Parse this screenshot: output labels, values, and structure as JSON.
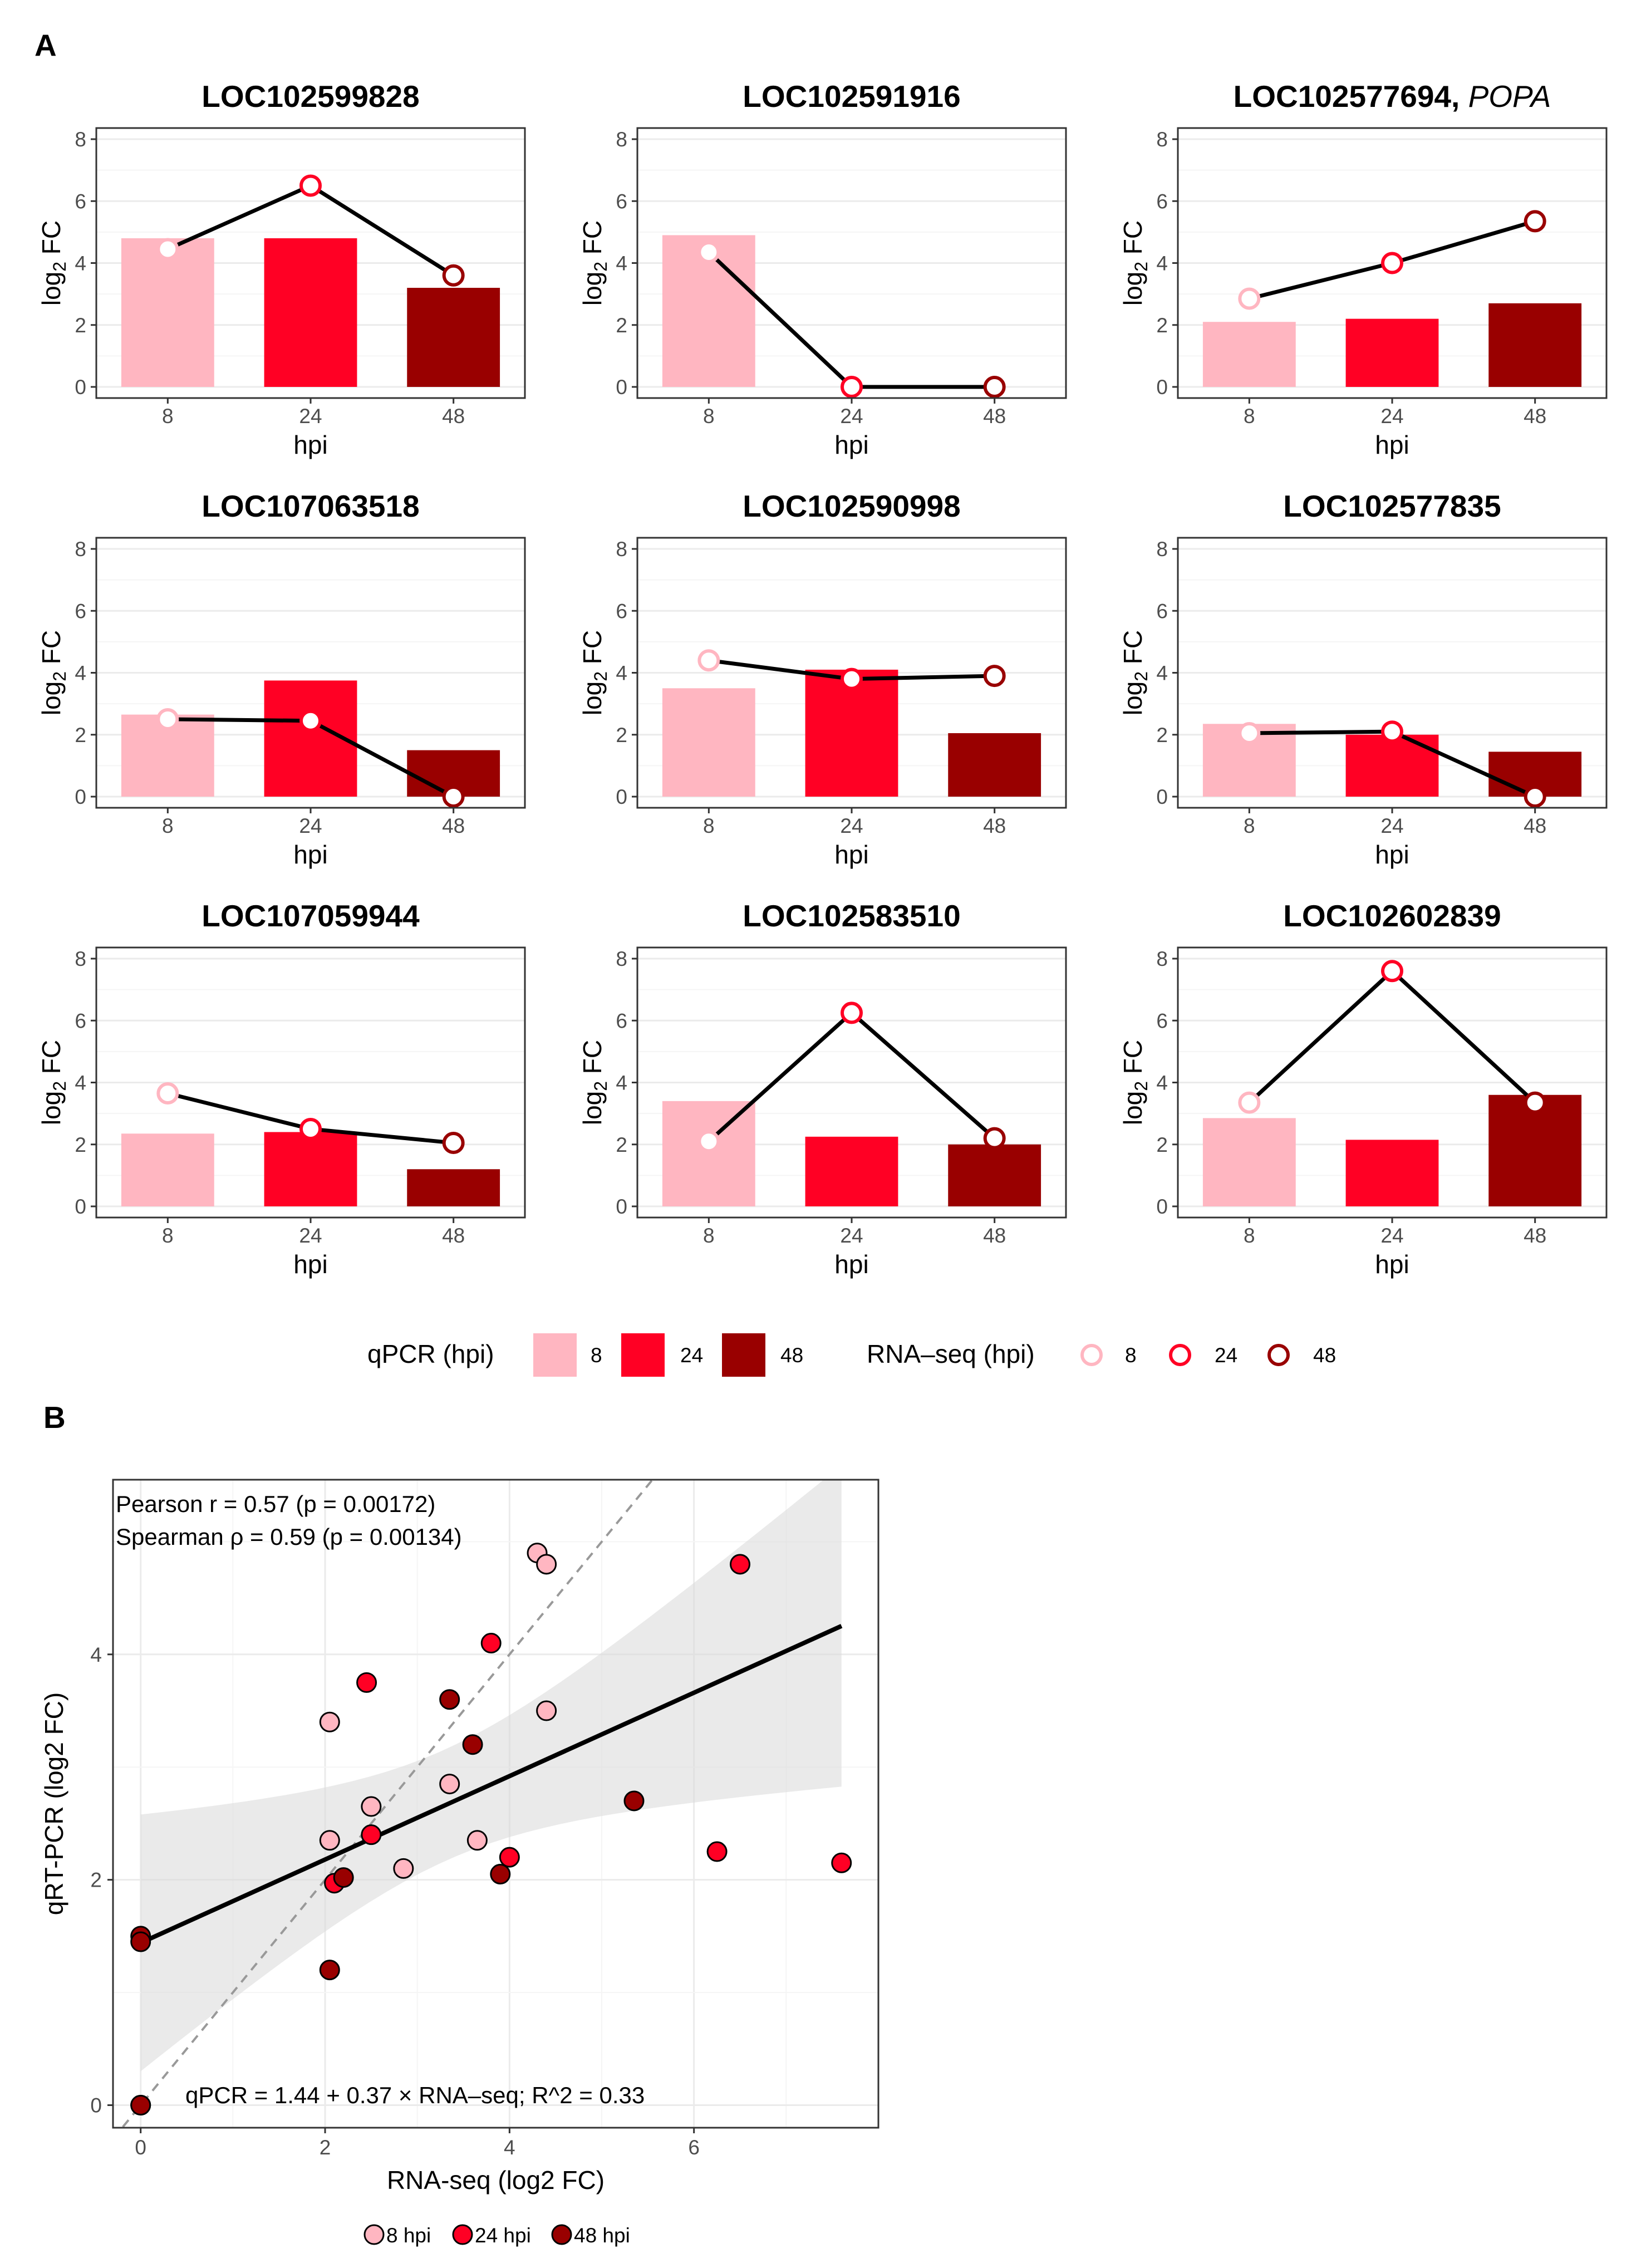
{
  "figure": {
    "panel_a_label": "A",
    "panel_b_label": "B"
  },
  "colors": {
    "h8": "#ffb6c1",
    "h24": "#ff0024",
    "h48": "#990000",
    "line": "#000000",
    "grid": "#ebebeb",
    "ribbon": "#d9d9d9"
  },
  "chart_data": [
    {
      "type": "bar",
      "title": "LOC102599828",
      "categories": [
        "8",
        "24",
        "48"
      ],
      "series": [
        {
          "name": "qPCR (hpi)",
          "values": [
            4.8,
            4.8,
            3.2
          ]
        },
        {
          "name": "RNA-seq (hpi)",
          "values": [
            4.45,
            6.5,
            3.6
          ]
        }
      ],
      "xlabel": "hpi",
      "ylabel": "log2 FC",
      "ylim": [
        0,
        8
      ],
      "yticks": [
        "0",
        "2",
        "4",
        "6",
        "8"
      ]
    },
    {
      "type": "bar",
      "title": "LOC102591916",
      "categories": [
        "8",
        "24",
        "48"
      ],
      "series": [
        {
          "name": "qPCR (hpi)",
          "values": [
            4.9,
            0,
            0
          ]
        },
        {
          "name": "RNA-seq (hpi)",
          "values": [
            4.35,
            0,
            0
          ]
        }
      ],
      "xlabel": "hpi",
      "ylabel": "log2 FC",
      "ylim": [
        0,
        8
      ],
      "yticks": [
        "0",
        "2",
        "4",
        "6",
        "8"
      ]
    },
    {
      "type": "bar",
      "title": "LOC102577694,",
      "title_italic": "POPA",
      "categories": [
        "8",
        "24",
        "48"
      ],
      "series": [
        {
          "name": "qPCR (hpi)",
          "values": [
            2.1,
            2.2,
            2.7
          ]
        },
        {
          "name": "RNA-seq (hpi)",
          "values": [
            2.85,
            4.0,
            5.35
          ]
        }
      ],
      "xlabel": "hpi",
      "ylabel": "log2 FC",
      "ylim": [
        0,
        8
      ],
      "yticks": [
        "0",
        "2",
        "4",
        "6",
        "8"
      ]
    },
    {
      "type": "bar",
      "title": "LOC107063518",
      "categories": [
        "8",
        "24",
        "48"
      ],
      "series": [
        {
          "name": "qPCR (hpi)",
          "values": [
            2.65,
            3.75,
            1.5
          ]
        },
        {
          "name": "RNA-seq (hpi)",
          "values": [
            2.5,
            2.45,
            0
          ]
        }
      ],
      "xlabel": "hpi",
      "ylabel": "log2 FC",
      "ylim": [
        0,
        8
      ],
      "yticks": [
        "0",
        "2",
        "4",
        "6",
        "8"
      ]
    },
    {
      "type": "bar",
      "title": "LOC102590998",
      "categories": [
        "8",
        "24",
        "48"
      ],
      "series": [
        {
          "name": "qPCR (hpi)",
          "values": [
            3.5,
            4.1,
            2.05
          ]
        },
        {
          "name": "RNA-seq (hpi)",
          "values": [
            4.4,
            3.8,
            3.9
          ]
        }
      ],
      "xlabel": "hpi",
      "ylabel": "log2 FC",
      "ylim": [
        0,
        8
      ],
      "yticks": [
        "0",
        "2",
        "4",
        "6",
        "8"
      ]
    },
    {
      "type": "bar",
      "title": "LOC102577835",
      "categories": [
        "8",
        "24",
        "48"
      ],
      "series": [
        {
          "name": "qPCR (hpi)",
          "values": [
            2.35,
            2.0,
            1.45
          ]
        },
        {
          "name": "RNA-seq (hpi)",
          "values": [
            2.05,
            2.1,
            0
          ]
        }
      ],
      "xlabel": "hpi",
      "ylabel": "log2 FC",
      "ylim": [
        0,
        8
      ],
      "yticks": [
        "0",
        "2",
        "4",
        "6",
        "8"
      ]
    },
    {
      "type": "bar",
      "title": "LOC107059944",
      "categories": [
        "8",
        "24",
        "48"
      ],
      "series": [
        {
          "name": "qPCR (hpi)",
          "values": [
            2.35,
            2.4,
            1.2
          ]
        },
        {
          "name": "RNA-seq (hpi)",
          "values": [
            3.65,
            2.5,
            2.05
          ]
        }
      ],
      "xlabel": "hpi",
      "ylabel": "log2 FC",
      "ylim": [
        0,
        8
      ],
      "yticks": [
        "0",
        "2",
        "4",
        "6",
        "8"
      ]
    },
    {
      "type": "bar",
      "title": "LOC102583510",
      "categories": [
        "8",
        "24",
        "48"
      ],
      "series": [
        {
          "name": "qPCR (hpi)",
          "values": [
            3.4,
            2.25,
            2.0
          ]
        },
        {
          "name": "RNA-seq (hpi)",
          "values": [
            2.1,
            6.25,
            2.2
          ]
        }
      ],
      "xlabel": "hpi",
      "ylabel": "log2 FC",
      "ylim": [
        0,
        8
      ],
      "yticks": [
        "0",
        "2",
        "4",
        "6",
        "8"
      ]
    },
    {
      "type": "bar",
      "title": "LOC102602839",
      "categories": [
        "8",
        "24",
        "48"
      ],
      "series": [
        {
          "name": "qPCR (hpi)",
          "values": [
            2.85,
            2.15,
            3.6
          ]
        },
        {
          "name": "RNA-seq (hpi)",
          "values": [
            3.35,
            7.6,
            3.35
          ]
        }
      ],
      "xlabel": "hpi",
      "ylabel": "log2 FC",
      "ylim": [
        0,
        8
      ],
      "yticks": [
        "0",
        "2",
        "4",
        "6",
        "8"
      ]
    },
    {
      "type": "scatter",
      "title": "",
      "xlabel": "RNA-seq (log2 FC)",
      "ylabel": "qRT-PCR (log2 FC)",
      "xlim": [
        -0.3,
        8.0
      ],
      "ylim": [
        -0.2,
        5.55
      ],
      "xticks": [
        "0",
        "2",
        "4",
        "6"
      ],
      "yticks": [
        "0",
        "2",
        "4"
      ],
      "series": [
        {
          "name": "8 hpi",
          "points": [
            [
              4.3,
              4.9
            ],
            [
              4.4,
              4.8
            ],
            [
              2.05,
              3.4
            ],
            [
              4.4,
              3.5
            ],
            [
              2.5,
              2.65
            ],
            [
              3.35,
              2.85
            ],
            [
              2.05,
              2.35
            ],
            [
              3.65,
              2.35
            ],
            [
              2.85,
              2.1
            ]
          ]
        },
        {
          "name": "24 hpi",
          "points": [
            [
              6.5,
              4.8
            ],
            [
              3.8,
              4.1
            ],
            [
              2.45,
              3.75
            ],
            [
              2.5,
              2.4
            ],
            [
              4.0,
              2.2
            ],
            [
              6.25,
              2.25
            ],
            [
              7.6,
              2.15
            ],
            [
              2.1,
              1.97
            ],
            [
              0,
              0
            ]
          ]
        },
        {
          "name": "48 hpi",
          "points": [
            [
              3.35,
              3.6
            ],
            [
              3.6,
              3.2
            ],
            [
              5.35,
              2.7
            ],
            [
              3.9,
              2.05
            ],
            [
              2.2,
              2.02
            ],
            [
              2.05,
              1.2
            ],
            [
              0,
              1.5
            ],
            [
              0,
              1.45
            ],
            [
              0,
              0
            ]
          ]
        }
      ],
      "fit": {
        "intercept": 1.44,
        "slope": 0.37,
        "x_range": [
          0,
          7.6
        ],
        "se": 0.65
      },
      "annotations": {
        "pearson": "Pearson r = 0.57 (p = 0.00172)",
        "spearman": "Spearman ρ = 0.59 (p = 0.00134)",
        "equation": "qPCR = 1.44 + 0.37 × RNA–seq;  R^2 = 0.33"
      }
    }
  ],
  "legend_a": {
    "qpcr_title": "qPCR (hpi)",
    "rnaseq_title": "RNA–seq (hpi)",
    "labels": [
      "8",
      "24",
      "48"
    ]
  },
  "legend_b": {
    "labels": [
      "8 hpi",
      "24 hpi",
      "48 hpi"
    ]
  }
}
